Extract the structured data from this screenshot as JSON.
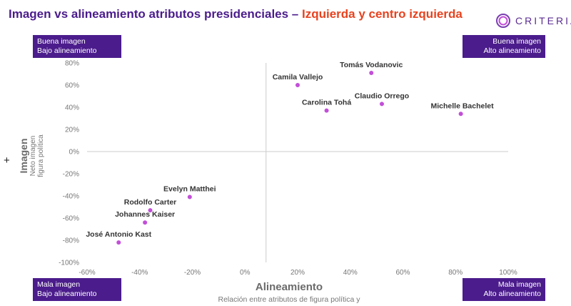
{
  "header": {
    "title_part1": "Imagen vs alineamiento atributos presidenciales –",
    "title_part2": "Izquierda y centro izquierda",
    "logo_text": "CRITERIA"
  },
  "quadrants": {
    "top_left": {
      "line1": "Buena imagen",
      "line2": "Bajo alineamiento"
    },
    "top_right": {
      "line1": "Buena imagen",
      "line2": "Alto alineamiento"
    },
    "bottom_left": {
      "line1": "Mala imagen",
      "line2": "Bajo alineamiento"
    },
    "bottom_right": {
      "line1": "Mala imagen",
      "line2": "Alto alineamiento"
    }
  },
  "side_marker": "+",
  "colors": {
    "title_purple": "#4b1c8c",
    "title_orange": "#e8421e",
    "box_purple": "#4b1c8c",
    "point": "#c24fd8",
    "axis_line": "#cccccc"
  },
  "chart_data": {
    "type": "scatter",
    "xlabel": "Alineamiento",
    "xlabel_sub": "Relación entre atributos de figura política y",
    "ylabel": "Imagen",
    "ylabel_sub": [
      "Neto imagen",
      "figura política"
    ],
    "xlim": [
      -60,
      100
    ],
    "ylim": [
      -100,
      80
    ],
    "x_ticks": [
      -60,
      -40,
      -20,
      0,
      20,
      40,
      60,
      80,
      100
    ],
    "y_ticks": [
      80,
      60,
      40,
      20,
      0,
      -20,
      -40,
      -60,
      -80,
      -100
    ],
    "x_tick_labels": [
      "-60%",
      "-40%",
      "-20%",
      "0%",
      "20%",
      "40%",
      "60%",
      "80%",
      "100%"
    ],
    "y_tick_labels": [
      "80%",
      "60%",
      "40%",
      "20%",
      "0%",
      "-20%",
      "-40%",
      "-60%",
      "-80%",
      "-100%"
    ],
    "divider_x": 8,
    "divider_y": 0,
    "grid": false,
    "points": [
      {
        "label": "Tomás Vodanovic",
        "x": 48,
        "y": 71
      },
      {
        "label": "Camila Vallejo",
        "x": 20,
        "y": 60
      },
      {
        "label": "Claudio Orrego",
        "x": 52,
        "y": 43
      },
      {
        "label": "Carolina Tohá",
        "x": 31,
        "y": 37
      },
      {
        "label": "Michelle Bachelet",
        "x": 82,
        "y": 34
      },
      {
        "label": "Evelyn Matthei",
        "x": -21,
        "y": -41
      },
      {
        "label": "Rodolfo Carter",
        "x": -36,
        "y": -53
      },
      {
        "label": "Johannes Kaiser",
        "x": -38,
        "y": -64
      },
      {
        "label": "José Antonio Kast",
        "x": -48,
        "y": -82
      }
    ]
  }
}
